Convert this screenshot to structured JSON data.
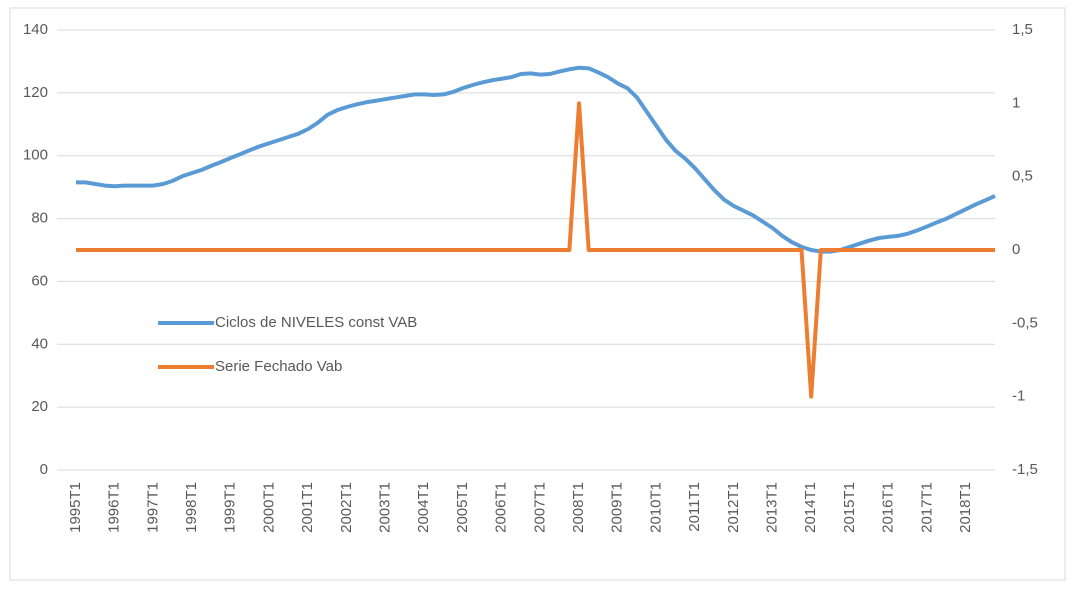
{
  "chart_data": {
    "type": "line",
    "categories": [
      "1995T1",
      null,
      null,
      null,
      "1996T1",
      null,
      null,
      null,
      "1997T1",
      null,
      null,
      null,
      "1998T1",
      null,
      null,
      null,
      "1999T1",
      null,
      null,
      null,
      "2000T1",
      null,
      null,
      null,
      "2001T1",
      null,
      null,
      null,
      "2002T1",
      null,
      null,
      null,
      "2003T1",
      null,
      null,
      null,
      "2004T1",
      null,
      null,
      null,
      "2005T1",
      null,
      null,
      null,
      "2006T1",
      null,
      null,
      null,
      "2007T1",
      null,
      null,
      null,
      "2008T1",
      null,
      null,
      null,
      "2009T1",
      null,
      null,
      null,
      "2010T1",
      null,
      null,
      null,
      "2011T1",
      null,
      null,
      null,
      "2012T1",
      null,
      null,
      null,
      "2013T1",
      null,
      null,
      null,
      "2014T1",
      null,
      null,
      null,
      "2015T1",
      null,
      null,
      null,
      "2016T1",
      null,
      null,
      null,
      "2017T1",
      null,
      null,
      null,
      "2018T1",
      null,
      null,
      null
    ],
    "series": [
      {
        "name": "Ciclos de NIVELES const VAB",
        "color": "#5b9bd5",
        "values": [
          91.5,
          91.5,
          91,
          90.5,
          90.3,
          90.5,
          90.5,
          90.5,
          90.5,
          91,
          92,
          93.5,
          94.5,
          95.5,
          96.8,
          98,
          99.3,
          100.5,
          101.8,
          103,
          104,
          105,
          106,
          107,
          108.5,
          110.5,
          113,
          114.5,
          115.5,
          116.3,
          117,
          117.5,
          118,
          118.5,
          119,
          119.5,
          119.5,
          119.3,
          119.5,
          120.3,
          121.5,
          122.5,
          123.3,
          124,
          124.5,
          125,
          126,
          126.2,
          125.8,
          126,
          126.8,
          127.5,
          128,
          127.8,
          126.5,
          125,
          123,
          121.5,
          118.5,
          114,
          109.5,
          105,
          101.5,
          99,
          96,
          92.5,
          89,
          86,
          84,
          82.5,
          81,
          79,
          77,
          74.5,
          72.5,
          71,
          70,
          69.5,
          69.5,
          70,
          71,
          72,
          73,
          73.8,
          74.2,
          74.5,
          75.2,
          76.3,
          77.5,
          78.8,
          80,
          81.5,
          83,
          84.5,
          85.8,
          87.2
        ]
      },
      {
        "name": "Serie Fechado Vab",
        "color": "#ed7d31",
        "axis": "y2",
        "values": [
          0,
          0,
          0,
          0,
          0,
          0,
          0,
          0,
          0,
          0,
          0,
          0,
          0,
          0,
          0,
          0,
          0,
          0,
          0,
          0,
          0,
          0,
          0,
          0,
          0,
          0,
          0,
          0,
          0,
          0,
          0,
          0,
          0,
          0,
          0,
          0,
          0,
          0,
          0,
          0,
          0,
          0,
          0,
          0,
          0,
          0,
          0,
          0,
          0,
          0,
          0,
          0,
          1,
          0,
          0,
          0,
          0,
          0,
          0,
          0,
          0,
          0,
          0,
          0,
          0,
          0,
          0,
          0,
          0,
          0,
          0,
          0,
          0,
          0,
          0,
          0,
          -1,
          0,
          0,
          0,
          0,
          0,
          0,
          0,
          0,
          0,
          0,
          0,
          0,
          0,
          0,
          0,
          0,
          0,
          0,
          0
        ]
      }
    ],
    "ylim": [
      0,
      140
    ],
    "yticks": [
      0,
      20,
      40,
      60,
      80,
      100,
      120,
      140
    ],
    "y2lim": [
      -1.5,
      1.5
    ],
    "y2ticks": [
      {
        "value": -1.5,
        "label": "-1,5"
      },
      -1,
      {
        "value": -0.5,
        "label": "-0,5"
      },
      0,
      {
        "value": 0.5,
        "label": "0,5"
      },
      1,
      {
        "value": 1.5,
        "label": "1,5"
      }
    ],
    "grid": true
  }
}
